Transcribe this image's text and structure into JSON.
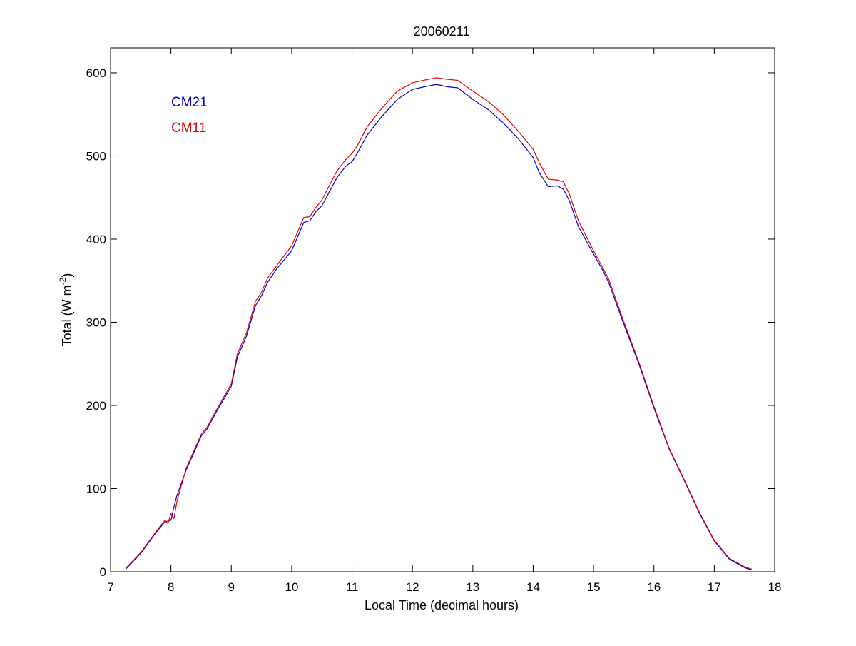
{
  "chart_data": {
    "type": "line",
    "title": "20060211",
    "xlabel": "Local Time (decimal hours)",
    "ylabel_main": "Total (W m",
    "ylabel_sup": "-2",
    "ylabel_close": ")",
    "xlim": [
      7,
      18
    ],
    "ylim": [
      0,
      630
    ],
    "xticks": [
      7,
      8,
      9,
      10,
      11,
      12,
      13,
      14,
      15,
      16,
      17,
      18
    ],
    "yticks": [
      0,
      100,
      200,
      300,
      400,
      500,
      600
    ],
    "grid": false,
    "legend_position": "top-left",
    "series": [
      {
        "name": "CM21",
        "color": "#0000c8",
        "x": [
          7.25,
          7.5,
          7.75,
          7.9,
          8.0,
          8.05,
          8.1,
          8.25,
          8.5,
          8.6,
          8.75,
          9.0,
          9.1,
          9.25,
          9.4,
          9.5,
          9.6,
          9.75,
          10.0,
          10.2,
          10.3,
          10.4,
          10.5,
          10.75,
          10.9,
          11.0,
          11.1,
          11.25,
          11.5,
          11.75,
          12.0,
          12.25,
          12.4,
          12.6,
          12.75,
          13.0,
          13.25,
          13.5,
          13.75,
          14.0,
          14.1,
          14.25,
          14.4,
          14.5,
          14.6,
          14.75,
          15.0,
          15.15,
          15.25,
          15.5,
          15.75,
          16.0,
          16.25,
          16.5,
          16.75,
          17.0,
          17.25,
          17.5,
          17.62
        ],
        "values": [
          3,
          22,
          47,
          60,
          62,
          78,
          92,
          122,
          163,
          172,
          192,
          223,
          258,
          283,
          320,
          332,
          348,
          364,
          386,
          420,
          422,
          433,
          440,
          474,
          488,
          493,
          505,
          525,
          548,
          568,
          580,
          584,
          586,
          583,
          582,
          568,
          556,
          540,
          521,
          498,
          480,
          463,
          464,
          460,
          446,
          415,
          382,
          363,
          348,
          298,
          250,
          197,
          148,
          110,
          71,
          37,
          15,
          5,
          2
        ]
      },
      {
        "name": "CM11",
        "color": "#e00000",
        "x": [
          7.25,
          7.5,
          7.75,
          7.9,
          7.95,
          8.0,
          8.05,
          8.1,
          8.25,
          8.5,
          8.6,
          8.75,
          9.0,
          9.1,
          9.25,
          9.4,
          9.5,
          9.6,
          9.75,
          10.0,
          10.2,
          10.3,
          10.4,
          10.5,
          10.75,
          10.9,
          11.0,
          11.1,
          11.25,
          11.5,
          11.75,
          12.0,
          12.25,
          12.4,
          12.6,
          12.75,
          13.0,
          13.25,
          13.5,
          13.75,
          14.0,
          14.1,
          14.25,
          14.4,
          14.5,
          14.6,
          14.75,
          15.0,
          15.15,
          15.25,
          15.5,
          15.75,
          16.0,
          16.25,
          16.5,
          16.75,
          17.0,
          17.25,
          17.5,
          17.62
        ],
        "values": [
          4,
          23,
          48,
          62,
          58,
          70,
          64,
          85,
          124,
          165,
          174,
          194,
          226,
          262,
          287,
          325,
          336,
          353,
          368,
          392,
          426,
          427,
          438,
          447,
          482,
          496,
          503,
          514,
          535,
          558,
          578,
          588,
          592,
          594,
          592,
          591,
          578,
          566,
          550,
          530,
          508,
          492,
          472,
          471,
          469,
          454,
          422,
          386,
          366,
          352,
          301,
          252,
          199,
          149,
          111,
          72,
          38,
          16,
          6,
          3
        ]
      }
    ]
  }
}
